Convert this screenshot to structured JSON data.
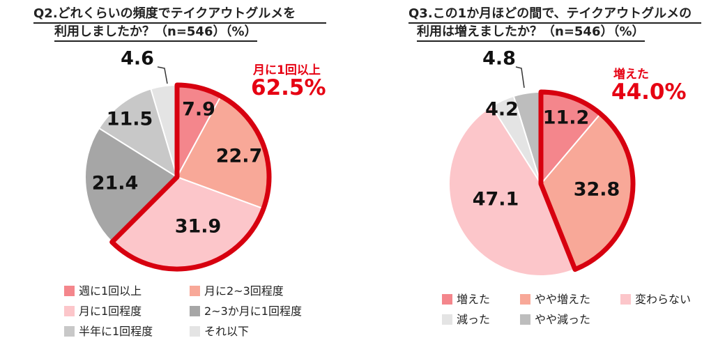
{
  "chart_data": [
    {
      "type": "pie",
      "title": "Q2.どれくらいの頻度でテイクアウトグルメを利用しましたか？（n=546）（%）",
      "title_lines": [
        "Q2.どれくらいの頻度でテイクアウトグルメを",
        "利用しましたか？（n=546）（%）"
      ],
      "slices": [
        {
          "label": "週に1回以上",
          "value": 7.9,
          "display": "7.9",
          "color": "#f4868c"
        },
        {
          "label": "月に2~3回程度",
          "value": 22.7,
          "display": "22.7",
          "color": "#f8a898"
        },
        {
          "label": "月に1回程度",
          "value": 31.9,
          "display": "31.9",
          "color": "#fcc6ca"
        },
        {
          "label": "2~3か月に1回程度",
          "value": 21.4,
          "display": "21.4",
          "color": "#a6a6a6"
        },
        {
          "label": "半年に1回程度",
          "value": 11.5,
          "display": "11.5",
          "color": "#c8c8c8"
        },
        {
          "label": "それ以下",
          "value": 4.6,
          "display": "4.6",
          "color": "#e4e4e4"
        }
      ],
      "highlight": {
        "label": "月に1回以上",
        "value": "62.5%",
        "border_color": "#d7000f"
      }
    },
    {
      "type": "pie",
      "title": "Q3.この1か月ほどの間で、テイクアウトグルメの利用は増えましたか？（n=546）（%）",
      "title_lines": [
        "Q3.この1か月ほどの間で、テイクアウトグルメの",
        "利用は増えましたか？（n=546）（%）"
      ],
      "slices": [
        {
          "label": "増えた",
          "value": 11.2,
          "display": "11.2",
          "color": "#f4868c"
        },
        {
          "label": "やや増えた",
          "value": 32.8,
          "display": "32.8",
          "color": "#f8a898"
        },
        {
          "label": "変わらない",
          "value": 47.1,
          "display": "47.1",
          "color": "#fcc6ca"
        },
        {
          "label": "減った",
          "value": 4.2,
          "display": "4.2",
          "color": "#e4e4e4"
        },
        {
          "label": "やや減った",
          "value": 4.8,
          "display": "4.8",
          "color": "#bdbdbd"
        }
      ],
      "highlight": {
        "label": "増えた",
        "value": "44.0%",
        "border_color": "#d7000f"
      }
    }
  ]
}
